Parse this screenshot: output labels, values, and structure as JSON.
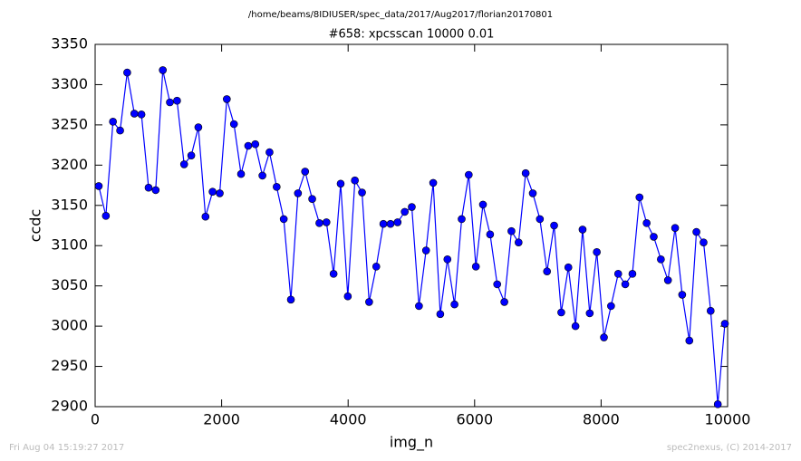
{
  "chart_data": {
    "type": "line",
    "suptitle": "/home/beams/8IDIUSER/spec_data/2017/Aug2017/florian20170801",
    "title": "#658: xpcsscan 10000 0.01",
    "xlabel": "img_n",
    "ylabel": "ccdc",
    "footer_left": "Fri Aug 04 15:19:27 2017",
    "footer_right": "spec2nexus, (C) 2014-2017",
    "xlim": [
      0,
      10000
    ],
    "xticks": [
      0,
      2000,
      4000,
      6000,
      8000,
      10000
    ],
    "ylim": [
      2900,
      3350
    ],
    "yticks": [
      2900,
      2950,
      3000,
      3050,
      3100,
      3150,
      3200,
      3250,
      3300,
      3350
    ],
    "x": [
      57,
      170,
      282,
      395,
      507,
      620,
      732,
      845,
      957,
      1070,
      1182,
      1295,
      1407,
      1520,
      1632,
      1745,
      1857,
      1970,
      2082,
      2195,
      2307,
      2420,
      2532,
      2645,
      2757,
      2870,
      2982,
      3095,
      3207,
      3320,
      3432,
      3545,
      3657,
      3770,
      3882,
      3995,
      4107,
      4220,
      4332,
      4445,
      4557,
      4670,
      4782,
      4895,
      5007,
      5120,
      5232,
      5345,
      5457,
      5570,
      5682,
      5795,
      5907,
      6020,
      6132,
      6245,
      6357,
      6470,
      6582,
      6695,
      6807,
      6920,
      7032,
      7145,
      7257,
      7370,
      7482,
      7595,
      7707,
      7820,
      7932,
      8045,
      8157,
      8270,
      8382,
      8495,
      8607,
      8720,
      8832,
      8945,
      9057,
      9170,
      9282,
      9395,
      9507,
      9620,
      9732,
      9845,
      9957
    ],
    "series": [
      {
        "color": "#0000ff",
        "values": [
          3174,
          3137,
          3254,
          3243,
          3315,
          3264,
          3263,
          3172,
          3169,
          3318,
          3278,
          3280,
          3201,
          3212,
          3247,
          3136,
          3167,
          3165,
          3282,
          3251,
          3189,
          3224,
          3226,
          3187,
          3216,
          3173,
          3133,
          3033,
          3165,
          3192,
          3158,
          3128,
          3129,
          3065,
          3177,
          3037,
          3181,
          3166,
          3030,
          3074,
          3127,
          3127,
          3129,
          3142,
          3148,
          3025,
          3094,
          3178,
          3015,
          3083,
          3027,
          3133,
          3188,
          3074,
          3151,
          3114,
          3052,
          3030,
          3118,
          3104,
          3190,
          3165,
          3133,
          3068,
          3125,
          3017,
          3073,
          3000,
          3120,
          3016,
          3092,
          2986,
          3025,
          3065,
          3052,
          3065,
          3160,
          3128,
          3111,
          3083,
          3057,
          3122,
          3039,
          2982,
          3117,
          3104,
          3019,
          2903,
          3003
        ]
      }
    ]
  }
}
